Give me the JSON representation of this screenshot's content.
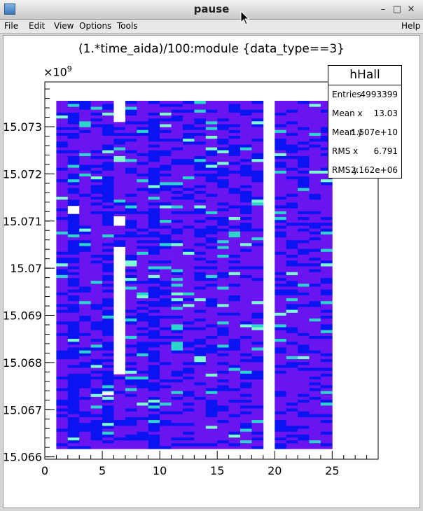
{
  "window": {
    "title": "pause"
  },
  "menus": {
    "file": "File",
    "edit": "Edit",
    "view": "View",
    "options": "Options",
    "tools": "Tools",
    "help": "Help"
  },
  "plot": {
    "title": "(1.*time_aida)/100:module {data_type==3}",
    "y_exponent": "×10",
    "y_exponent_power": "9"
  },
  "stats": {
    "name": "hHall",
    "rows": [
      {
        "label": "Entries",
        "value": "4993399"
      },
      {
        "label": "Mean x",
        "value": "13.03"
      },
      {
        "label": "Mean y",
        "value": "1.507e+10"
      },
      {
        "label": "RMS x",
        "value": "6.791"
      },
      {
        "label": "RMS y",
        "value": "2.162e+06"
      }
    ]
  },
  "chart_data": {
    "type": "heatmap",
    "title": "(1.*time_aida)/100:module {data_type==3}",
    "xlabel": "",
    "ylabel": "",
    "xlim": [
      0,
      29
    ],
    "ylim": [
      15.06595,
      15.07395
    ],
    "y_scale_factor": "1e9",
    "x_ticks": [
      0,
      5,
      10,
      15,
      20,
      25
    ],
    "x_tick_labels": [
      "0",
      "5",
      "10",
      "15",
      "20",
      "25"
    ],
    "y_ticks": [
      15.066,
      15.067,
      15.068,
      15.069,
      15.07,
      15.071,
      15.072,
      15.073
    ],
    "y_tick_labels": [
      "15.066",
      "15.067",
      "15.068",
      "15.069",
      "15.07",
      "15.071",
      "15.072",
      "15.073"
    ],
    "filled_x_range": [
      1,
      25
    ],
    "filled_y_range": [
      15.06617,
      15.07355
    ],
    "empty_module_bins": [
      19
    ],
    "colors": {
      "low": "#0a14f0",
      "mid": "#6a14f0",
      "high": "#2cd5cc",
      "top": "#7fffd0"
    }
  }
}
